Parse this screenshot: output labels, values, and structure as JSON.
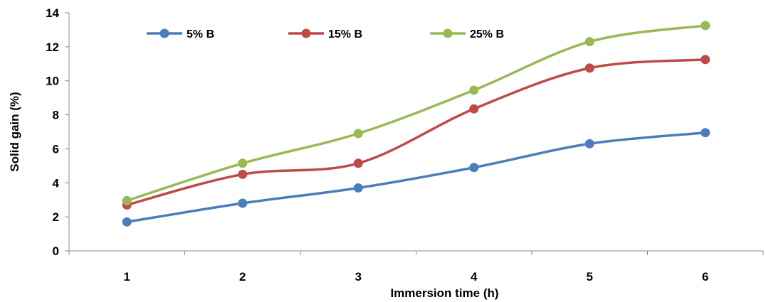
{
  "chart_data": {
    "type": "line",
    "title": "",
    "xlabel": "Immersion time (h)",
    "ylabel": "Solid gain (%)",
    "x": [
      1,
      2,
      3,
      4,
      5,
      6
    ],
    "xticks": [
      "1",
      "2",
      "3",
      "4",
      "5",
      "6"
    ],
    "ylim": [
      0,
      14
    ],
    "yticks": [
      "0",
      "2",
      "4",
      "6",
      "8",
      "10",
      "12",
      "14"
    ],
    "grid": false,
    "legend": "top",
    "smooth": true,
    "series": [
      {
        "name": "5% B",
        "color": "#4a7ebb",
        "values": [
          1.7,
          2.8,
          3.7,
          4.9,
          6.3,
          6.95
        ]
      },
      {
        "name": "15% B",
        "color": "#be4b48",
        "values": [
          2.7,
          4.5,
          5.15,
          8.35,
          10.75,
          11.25
        ]
      },
      {
        "name": "25% B",
        "color": "#98b954",
        "values": [
          2.95,
          5.15,
          6.9,
          9.45,
          12.3,
          13.25
        ]
      }
    ]
  }
}
